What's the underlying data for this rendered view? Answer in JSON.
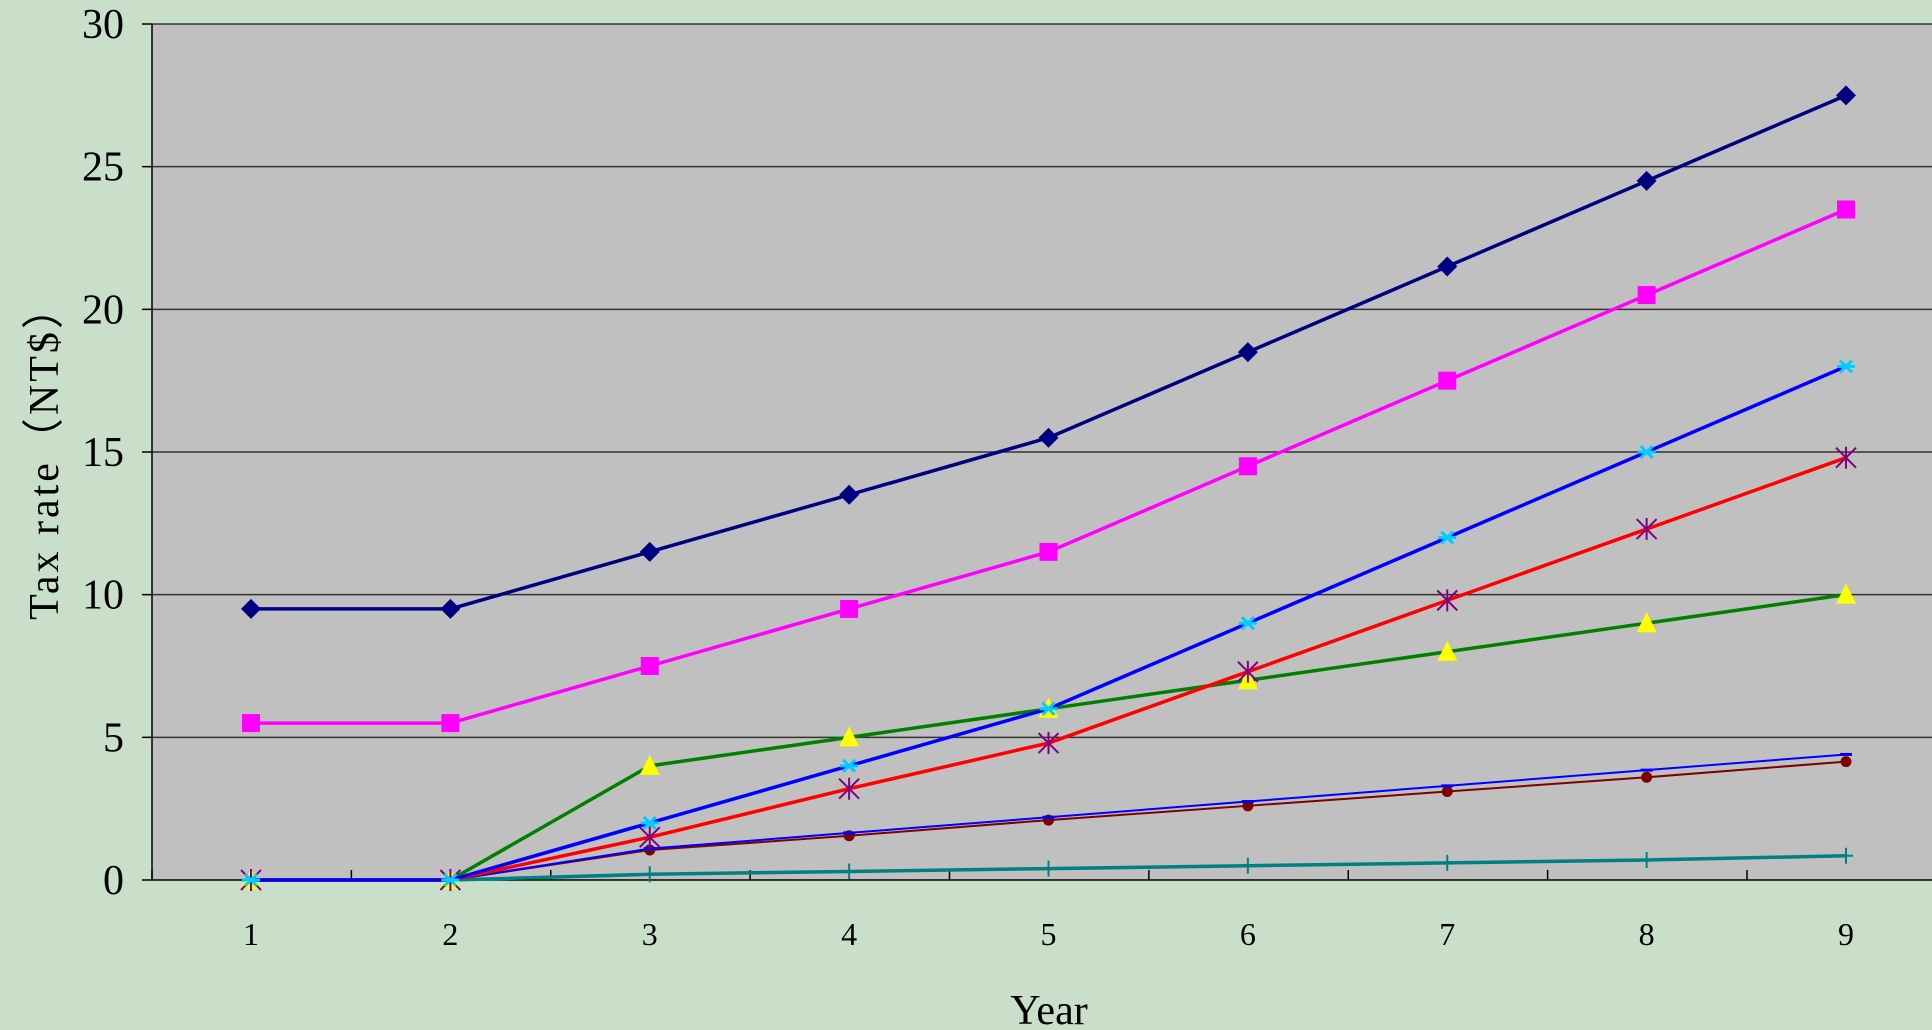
{
  "colors": {
    "page_background": "#c9dfc9",
    "plot_background": "#c0c0c0",
    "gridline": "#333333"
  },
  "chart_data": {
    "type": "line",
    "title": "",
    "xlabel": "Year",
    "ylabel": "Tax rate（NT$）",
    "x": [
      1,
      2,
      3,
      4,
      5,
      6,
      7,
      8,
      9
    ],
    "x_tick_labels": [
      "1",
      "2",
      "3",
      "4",
      "5",
      "6",
      "7",
      "8",
      "9"
    ],
    "ylim": [
      0,
      30
    ],
    "y_ticks": [
      0,
      5,
      10,
      15,
      20,
      25,
      30
    ],
    "y_tick_labels": [
      "0",
      "5",
      "10",
      "15",
      "20",
      "25",
      "30"
    ],
    "grid": "horizontal",
    "legend": "none",
    "series": [
      {
        "line_color": "#000080",
        "marker": "diamond",
        "marker_color": "#000080",
        "line_width": 3.5,
        "values": [
          9.5,
          9.5,
          11.5,
          13.5,
          15.5,
          18.5,
          21.5,
          24.5,
          27.5
        ]
      },
      {
        "line_color": "#ff00ff",
        "marker": "square",
        "marker_color": "#ff00ff",
        "line_width": 3.5,
        "values": [
          5.5,
          5.5,
          7.5,
          9.5,
          11.5,
          14.5,
          17.5,
          20.5,
          23.5
        ]
      },
      {
        "line_color": "#0000ff",
        "marker": "star",
        "marker_color": "#00ccff",
        "line_width": 3.5,
        "values": [
          0,
          0,
          2,
          4,
          6,
          9,
          12,
          15,
          18
        ]
      },
      {
        "line_color": "#ff0000",
        "marker": "asterisk",
        "marker_color": "#800080",
        "line_width": 3.5,
        "values": [
          0,
          0,
          1.5,
          3.2,
          4.8,
          7.3,
          9.8,
          12.3,
          14.8
        ]
      },
      {
        "line_color": "#008000",
        "marker": "triangle",
        "marker_color": "#ffff00",
        "line_width": 3.5,
        "values": [
          0,
          0,
          4,
          5,
          6,
          7,
          8,
          9,
          10
        ]
      },
      {
        "line_color": "#0000ff",
        "marker": "dash",
        "marker_color": "#0000ff",
        "line_width": 2,
        "values": [
          0,
          0,
          1.1,
          1.65,
          2.2,
          2.75,
          3.3,
          3.85,
          4.4
        ]
      },
      {
        "line_color": "#800000",
        "marker": "dot",
        "marker_color": "#800000",
        "line_width": 2,
        "values": [
          0,
          0,
          1.05,
          1.55,
          2.1,
          2.6,
          3.1,
          3.6,
          4.15
        ]
      },
      {
        "line_color": "#008080",
        "marker": "plus",
        "marker_color": "#008080",
        "line_width": 3.5,
        "values": [
          0,
          0,
          0.2,
          0.3,
          0.4,
          0.5,
          0.6,
          0.7,
          0.85
        ]
      }
    ]
  }
}
